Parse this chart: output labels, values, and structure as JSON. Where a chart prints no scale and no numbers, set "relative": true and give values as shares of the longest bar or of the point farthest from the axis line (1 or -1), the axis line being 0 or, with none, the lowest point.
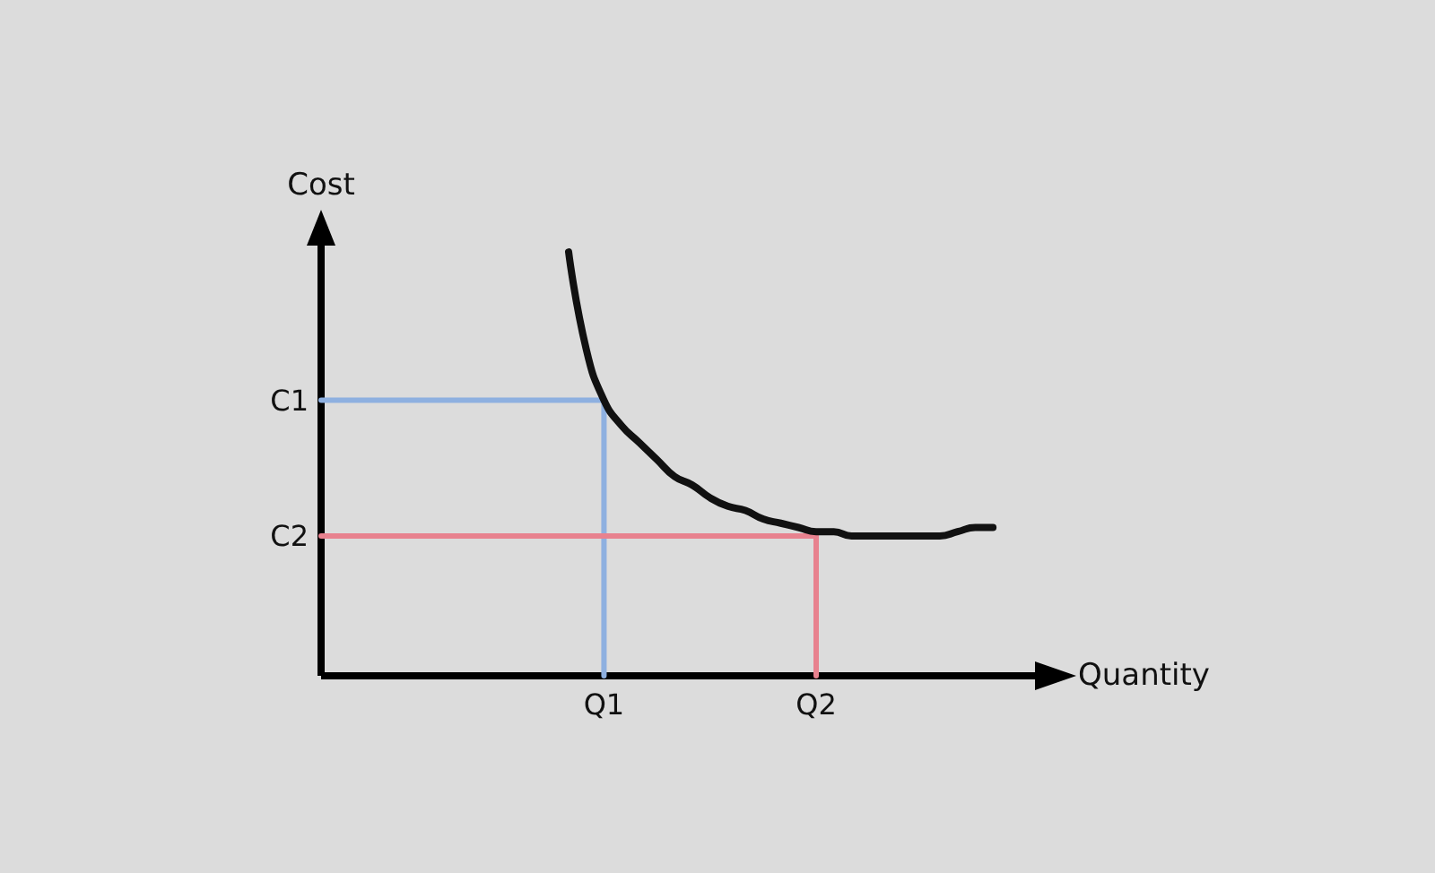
{
  "chart_data": {
    "type": "line",
    "relative": true,
    "xlabel": "Quantity",
    "ylabel": "Cost",
    "categories": [
      null,
      null,
      null,
      null,
      null,
      null,
      null,
      null,
      null,
      null,
      null,
      null,
      null,
      null,
      null,
      null,
      "Q1",
      null,
      null,
      null,
      null,
      null,
      null,
      null,
      null,
      null,
      null,
      null,
      "Q2",
      null,
      null,
      null,
      null,
      null,
      null,
      null,
      null,
      null,
      null,
      null,
      null,
      null,
      null
    ],
    "series": [
      {
        "color": "#111111",
        "values": [
          null,
          null,
          null,
          null,
          null,
          null,
          null,
          null,
          null,
          null,
          null,
          null,
          null,
          null,
          1,
          0.77,
          0.65,
          0.59,
          0.55,
          0.51,
          0.47,
          0.45,
          0.42,
          0.4,
          0.39,
          0.37,
          0.36,
          0.35,
          0.34,
          0.34,
          0.33,
          0.33,
          0.33,
          0.33,
          0.33,
          0.33,
          0.34,
          0.35,
          0.35,
          null,
          null,
          null,
          null
        ]
      },
      {
        "name": "C1",
        "type": "step",
        "color": "#8eb0e0",
        "values": [
          0.65,
          0.65,
          0.65,
          0.65,
          0.65,
          0.65,
          0.65,
          0.65,
          0.65,
          0.65,
          0.65,
          0.65,
          0.65,
          0.65,
          0.65,
          0.65,
          0,
          null,
          null,
          null,
          null,
          null,
          null,
          null,
          null,
          null,
          null,
          null,
          null,
          null,
          null,
          null,
          null,
          null,
          null,
          null,
          null,
          null,
          null,
          null,
          null,
          null,
          null
        ]
      },
      {
        "name": "C2",
        "type": "step",
        "color": "#e8828f",
        "values": [
          0.33,
          0.33,
          0.33,
          0.33,
          0.33,
          0.33,
          0.33,
          0.33,
          0.33,
          0.33,
          0.33,
          0.33,
          0.33,
          0.33,
          0.33,
          0.33,
          0.33,
          0.33,
          0.33,
          0.33,
          0.33,
          0.33,
          0.33,
          0.33,
          0.33,
          0.33,
          0.33,
          0.33,
          0,
          null,
          null,
          null,
          null,
          null,
          null,
          null,
          null,
          null,
          null,
          null,
          null,
          null,
          null
        ]
      }
    ],
    "marker": "none",
    "line_style": "solid"
  }
}
